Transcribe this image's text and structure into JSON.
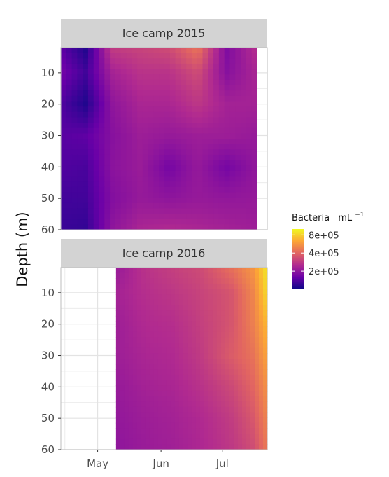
{
  "chart_data": {
    "type": "heatmap",
    "ylabel": "Depth (m)",
    "xlabel": "",
    "y_ticks": [
      10,
      20,
      30,
      40,
      50,
      60
    ],
    "y_tick_labels": [
      "10",
      "20",
      "30",
      "40",
      "50",
      "60"
    ],
    "x_ticks": [
      "May",
      "Jun",
      "Jul"
    ],
    "ylim": [
      60,
      2
    ],
    "xlim_days": [
      "2016-04-13",
      "2016-07-23"
    ],
    "legend": {
      "title": "Bacteria",
      "unit": "mL",
      "unit_exp": "−1",
      "ticks": [
        "8e+05",
        "4e+05",
        "2e+05"
      ],
      "scale": "log",
      "range": [
        100000,
        1000000
      ],
      "palette": [
        "#0d0887",
        "#6a00a8",
        "#b12a90",
        "#e16462",
        "#fca636",
        "#f0f921"
      ]
    },
    "panels": [
      {
        "title": "Ice camp 2015",
        "data_start": "2016-04-13",
        "data_end": "2016-07-18",
        "depths": [
          2,
          10,
          20,
          30,
          40,
          50,
          60
        ],
        "dates": [
          "2016-04-13",
          "2016-04-25",
          "2016-05-08",
          "2016-05-22",
          "2016-06-05",
          "2016-06-19",
          "2016-07-03",
          "2016-07-18"
        ],
        "values": [
          [
            150000,
            110000,
            290000,
            310000,
            330000,
            450000,
            180000,
            260000
          ],
          [
            170000,
            130000,
            230000,
            270000,
            270000,
            330000,
            190000,
            240000
          ],
          [
            140000,
            110000,
            200000,
            240000,
            240000,
            280000,
            230000,
            230000
          ],
          [
            145000,
            150000,
            190000,
            220000,
            210000,
            220000,
            220000,
            210000
          ],
          [
            140000,
            135000,
            195000,
            215000,
            170000,
            210000,
            170000,
            205000
          ],
          [
            130000,
            130000,
            185000,
            210000,
            200000,
            210000,
            205000,
            210000
          ],
          [
            125000,
            120000,
            200000,
            240000,
            250000,
            240000,
            230000,
            220000
          ]
        ]
      },
      {
        "title": "Ice camp 2016",
        "data_start": "2016-05-10",
        "data_end": "2016-07-23",
        "depths": [
          2,
          10,
          20,
          30,
          40,
          50,
          60
        ],
        "dates": [
          "2016-05-10",
          "2016-05-24",
          "2016-06-07",
          "2016-06-21",
          "2016-07-05",
          "2016-07-16",
          "2016-07-23"
        ],
        "values": [
          [
            210000,
            270000,
            300000,
            330000,
            430000,
            560000,
            900000
          ],
          [
            230000,
            260000,
            280000,
            310000,
            350000,
            500000,
            850000
          ],
          [
            220000,
            250000,
            260000,
            300000,
            350000,
            480000,
            700000
          ],
          [
            220000,
            240000,
            250000,
            290000,
            370000,
            440000,
            620000
          ],
          [
            210000,
            230000,
            240000,
            270000,
            320000,
            400000,
            550000
          ],
          [
            205000,
            220000,
            230000,
            250000,
            290000,
            360000,
            500000
          ],
          [
            200000,
            215000,
            225000,
            245000,
            280000,
            330000,
            460000
          ]
        ]
      }
    ]
  }
}
